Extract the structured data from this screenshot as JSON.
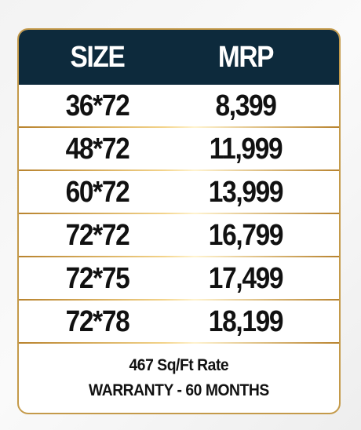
{
  "table": {
    "columns": [
      "SIZE",
      "MRP"
    ],
    "rows": [
      [
        "36*72",
        "8,399"
      ],
      [
        "48*72",
        "11,999"
      ],
      [
        "60*72",
        "13,999"
      ],
      [
        "72*72",
        "16,799"
      ],
      [
        "72*75",
        "17,499"
      ],
      [
        "72*78",
        "18,199"
      ]
    ]
  },
  "footer": {
    "lines": [
      "467 Sq/Ft Rate",
      "WARRANTY - 60 MONTHS"
    ]
  }
}
